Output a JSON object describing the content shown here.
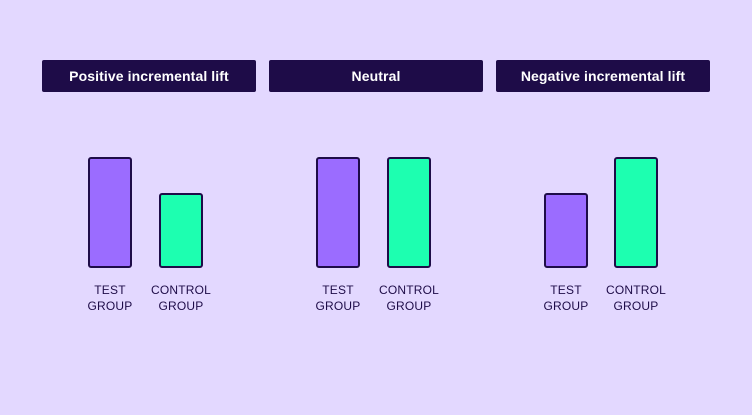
{
  "panels": [
    {
      "title": "Positive incremental lift",
      "bars": [
        {
          "kind": "test",
          "label_line1": "TEST",
          "label_line2": "GROUP",
          "level": 1.0
        },
        {
          "kind": "control",
          "label_line1": "CONTROL",
          "label_line2": "GROUP",
          "level": 0.68
        }
      ]
    },
    {
      "title": "Neutral",
      "bars": [
        {
          "kind": "test",
          "label_line1": "TEST",
          "label_line2": "GROUP",
          "level": 1.0
        },
        {
          "kind": "control",
          "label_line1": "CONTROL",
          "label_line2": "GROUP",
          "level": 1.0
        }
      ]
    },
    {
      "title": "Negative incremental lift",
      "bars": [
        {
          "kind": "test",
          "label_line1": "TEST",
          "label_line2": "GROUP",
          "level": 0.68
        },
        {
          "kind": "control",
          "label_line1": "CONTROL",
          "label_line2": "GROUP",
          "level": 1.0
        }
      ]
    }
  ],
  "colors": {
    "background": "#e3d8ff",
    "header": "#1e0c48",
    "test": "#9b6cff",
    "control": "#1dffb0",
    "outline": "#1e0c48"
  }
}
